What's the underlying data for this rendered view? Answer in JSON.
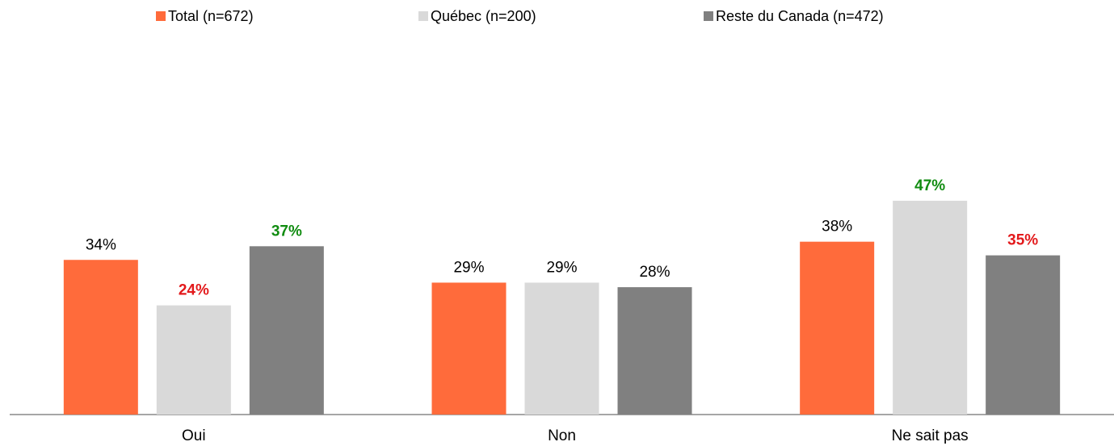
{
  "chart_data": {
    "type": "bar",
    "categories": [
      "Oui",
      "Non",
      "Ne sait pas"
    ],
    "series": [
      {
        "name": "Total (n=672)",
        "color": "#ff6b3b",
        "values": [
          34,
          29,
          38
        ],
        "value_labels": [
          "34%",
          "29%",
          "38%"
        ],
        "label_colors": [
          "#000000",
          "#000000",
          "#000000"
        ],
        "label_bold": [
          false,
          false,
          false
        ]
      },
      {
        "name": "Québec (n=200)",
        "color": "#d9d9d9",
        "values": [
          24,
          29,
          47
        ],
        "value_labels": [
          "24%",
          "29%",
          "47%"
        ],
        "label_colors": [
          "#e31a1c",
          "#000000",
          "#118c11"
        ],
        "label_bold": [
          true,
          false,
          true
        ]
      },
      {
        "name": "Reste du Canada (n=472)",
        "color": "#808080",
        "values": [
          37,
          28,
          35
        ],
        "value_labels": [
          "37%",
          "28%",
          "35%"
        ],
        "label_colors": [
          "#118c11",
          "#000000",
          "#e31a1c"
        ],
        "label_bold": [
          true,
          false,
          true
        ]
      }
    ],
    "ylim": [
      0,
      50
    ],
    "legend": "top"
  }
}
